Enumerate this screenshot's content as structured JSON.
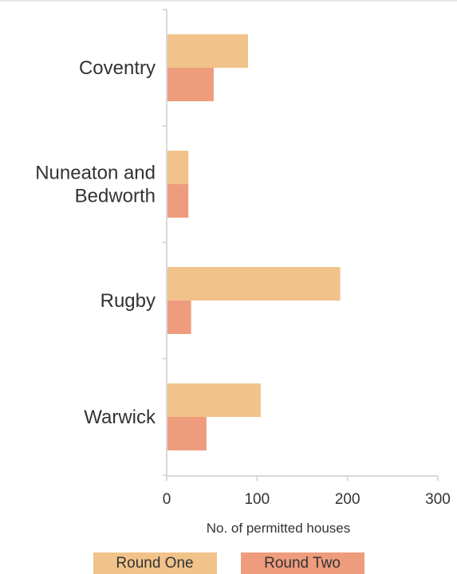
{
  "chart_data": {
    "type": "bar",
    "orientation": "horizontal",
    "categories": [
      [
        "Coventry"
      ],
      [
        "Nuneaton and",
        "Bedworth"
      ],
      [
        "Rugby"
      ],
      [
        "Warwick"
      ]
    ],
    "series": [
      {
        "name": "Round One",
        "color": "#f1c38a",
        "values": [
          90,
          24,
          192,
          104
        ]
      },
      {
        "name": "Round Two",
        "color": "#ef9c7d",
        "values": [
          52,
          24,
          27,
          44
        ]
      }
    ],
    "xlim": [
      0,
      300
    ],
    "xticks": [
      "0",
      "100",
      "200",
      "300"
    ],
    "xlabel": "No. of permitted houses",
    "grid": false,
    "legend": "bottom"
  }
}
